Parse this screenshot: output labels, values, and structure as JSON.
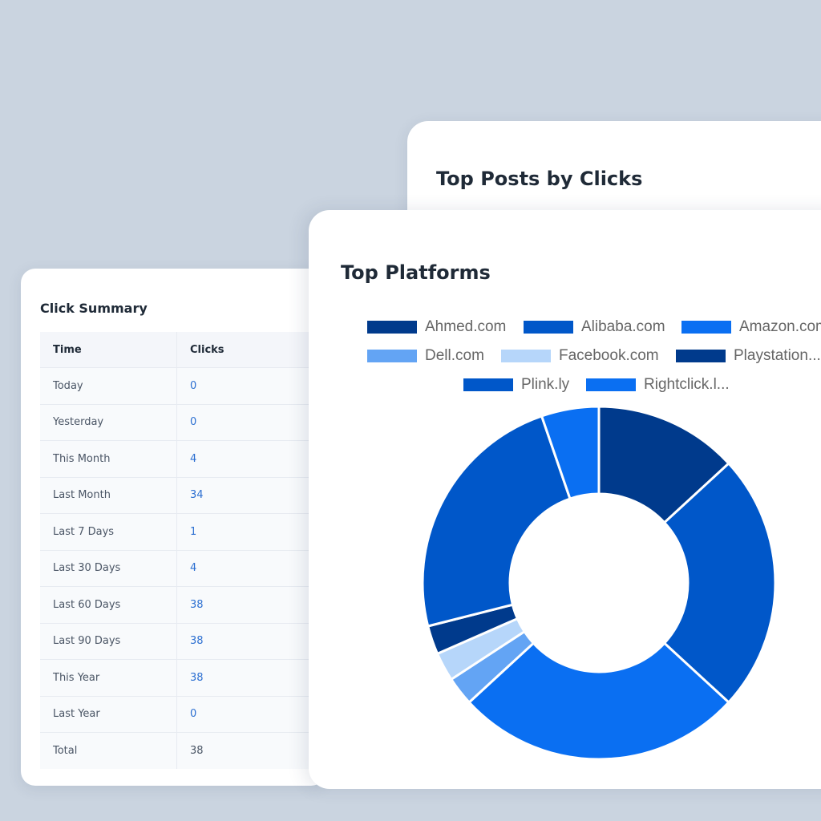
{
  "posts_card": {
    "title": "Top Posts by Clicks"
  },
  "summary_card": {
    "title": "Click Summary",
    "columns": [
      "Time",
      "Clicks"
    ],
    "rows": [
      {
        "time": "Today",
        "clicks": "0"
      },
      {
        "time": "Yesterday",
        "clicks": "0"
      },
      {
        "time": "This Month",
        "clicks": "4"
      },
      {
        "time": "Last Month",
        "clicks": "34"
      },
      {
        "time": "Last 7 Days",
        "clicks": "1"
      },
      {
        "time": "Last 30 Days",
        "clicks": "4"
      },
      {
        "time": "Last 60 Days",
        "clicks": "38"
      },
      {
        "time": "Last 90 Days",
        "clicks": "38"
      },
      {
        "time": "This Year",
        "clicks": "38"
      },
      {
        "time": "Last Year",
        "clicks": "0"
      },
      {
        "time": "Total",
        "clicks": "38"
      }
    ]
  },
  "platforms_card": {
    "title": "Top Platforms",
    "legend": [
      {
        "label": "Ahmed.com",
        "color": "#003a8c"
      },
      {
        "label": "Alibaba.com",
        "color": "#0057c9"
      },
      {
        "label": "Amazon.com",
        "color": "#0a6ff2"
      },
      {
        "label": "Dell.com",
        "color": "#63a4f4"
      },
      {
        "label": "Facebook.com",
        "color": "#b6d6fa"
      },
      {
        "label": "Playstation...",
        "color": "#003a8c"
      },
      {
        "label": "Plink.ly",
        "color": "#0057c9"
      },
      {
        "label": "Rightclick.l...",
        "color": "#0a6ff2"
      }
    ]
  },
  "chart_data": {
    "type": "pie",
    "variant": "doughnut",
    "categories": [
      "Ahmed.com",
      "Alibaba.com",
      "Amazon.com",
      "Dell.com",
      "Facebook.com",
      "Playstation...",
      "Plink.ly",
      "Rightclick.l..."
    ],
    "values": [
      5,
      9,
      10,
      1,
      1,
      1,
      9,
      2
    ],
    "colors": [
      "#003a8c",
      "#0057c9",
      "#0a6ff2",
      "#63a4f4",
      "#b6d6fa",
      "#003a8c",
      "#0057c9",
      "#0a6ff2"
    ],
    "legend_position": "top"
  }
}
